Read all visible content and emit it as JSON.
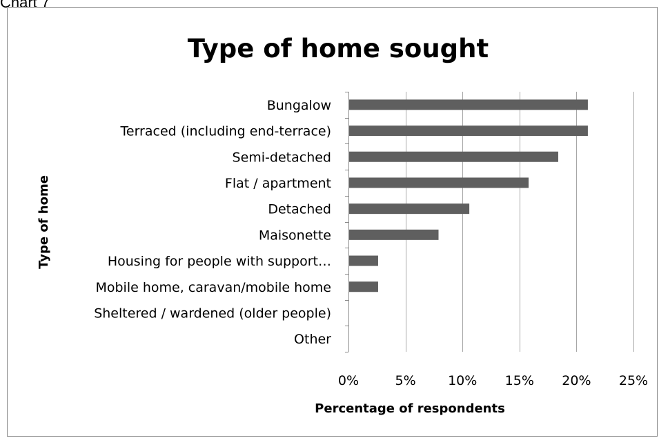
{
  "caption": "Chart 7",
  "chart_data": {
    "type": "bar",
    "orientation": "horizontal",
    "title": "Type of home sought",
    "xlabel": "Percentage of respondents",
    "ylabel": "Type of home",
    "categories": [
      "Bungalow",
      "Terraced (including end-terrace)",
      "Semi-detached",
      "Flat / apartment",
      "Detached",
      "Maisonette",
      "Housing for people with support…",
      "Mobile home, caravan/mobile home",
      "Sheltered / wardened (older people)",
      "Other"
    ],
    "values": [
      0.21,
      0.21,
      0.184,
      0.158,
      0.106,
      0.079,
      0.026,
      0.026,
      0,
      0
    ],
    "xlim": [
      0,
      0.25
    ],
    "xticks": [
      0,
      0.05,
      0.1,
      0.15,
      0.2,
      0.25
    ],
    "xtick_labels": [
      "0%",
      "5%",
      "10%",
      "15%",
      "20%",
      "25%"
    ],
    "grid": "vertical gridlines",
    "bar_color": "#5f5f5f",
    "gridline_color": "#a6a6a6"
  }
}
